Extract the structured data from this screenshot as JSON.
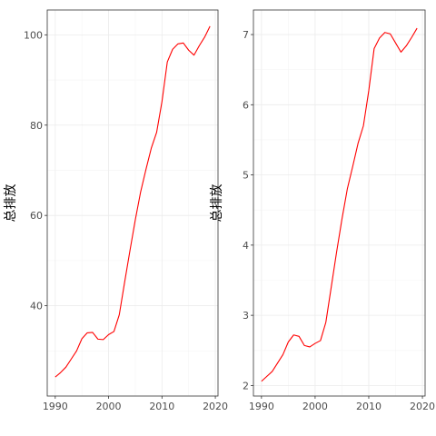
{
  "chart_data": [
    {
      "type": "line",
      "xlabel": "",
      "ylabel": "总排放",
      "xlim": [
        1988.5,
        2020.5
      ],
      "ylim": [
        20,
        105.5
      ],
      "x_ticks": [
        1990,
        2000,
        2010,
        2020
      ],
      "x_tick_labels": [
        "1990",
        "2000",
        "2010",
        "2020"
      ],
      "y_ticks": [
        40,
        60,
        80,
        100
      ],
      "y_tick_labels": [
        "40",
        "60",
        "80",
        "100"
      ],
      "grid": true,
      "line_color": "#ff0000",
      "series": [
        {
          "x": [
            1990,
            1991,
            1992,
            1993,
            1994,
            1995,
            1996,
            1997,
            1998,
            1999,
            2000,
            2001,
            2002,
            2003,
            2004,
            2005,
            2006,
            2007,
            2008,
            2009,
            2010,
            2011,
            2012,
            2013,
            2014,
            2015,
            2016,
            2017,
            2018,
            2019
          ],
          "values": [
            24.2,
            25.2,
            26.4,
            28.2,
            30.0,
            32.7,
            34.0,
            34.1,
            32.6,
            32.5,
            33.6,
            34.3,
            38.0,
            45.2,
            52.2,
            59.0,
            65.2,
            70.2,
            74.9,
            78.4,
            85.2,
            94.0,
            96.8,
            98.0,
            98.2,
            96.6,
            95.5,
            97.6,
            99.5,
            101.9
          ]
        }
      ]
    },
    {
      "type": "line",
      "xlabel": "",
      "ylabel": "总排放",
      "xlim": [
        1988.5,
        2020.5
      ],
      "ylim": [
        1.85,
        7.35
      ],
      "x_ticks": [
        1990,
        2000,
        2010,
        2020
      ],
      "x_tick_labels": [
        "1990",
        "2000",
        "2010",
        "2020"
      ],
      "y_ticks": [
        2,
        3,
        4,
        5,
        6,
        7
      ],
      "y_tick_labels": [
        "2",
        "3",
        "4",
        "5",
        "6",
        "7"
      ],
      "grid": true,
      "line_color": "#ff0000",
      "series": [
        {
          "x": [
            1990,
            1991,
            1992,
            1993,
            1994,
            1995,
            1996,
            1997,
            1998,
            1999,
            2000,
            2001,
            2002,
            2003,
            2004,
            2005,
            2006,
            2007,
            2008,
            2009,
            2010,
            2011,
            2012,
            2013,
            2014,
            2015,
            2016,
            2017,
            2018,
            2019
          ],
          "values": [
            2.06,
            2.13,
            2.2,
            2.32,
            2.44,
            2.62,
            2.72,
            2.7,
            2.57,
            2.55,
            2.6,
            2.64,
            2.9,
            3.4,
            3.9,
            4.37,
            4.8,
            5.12,
            5.45,
            5.7,
            6.2,
            6.8,
            6.95,
            7.03,
            7.01,
            6.88,
            6.75,
            6.84,
            6.96,
            7.09
          ]
        }
      ]
    }
  ]
}
